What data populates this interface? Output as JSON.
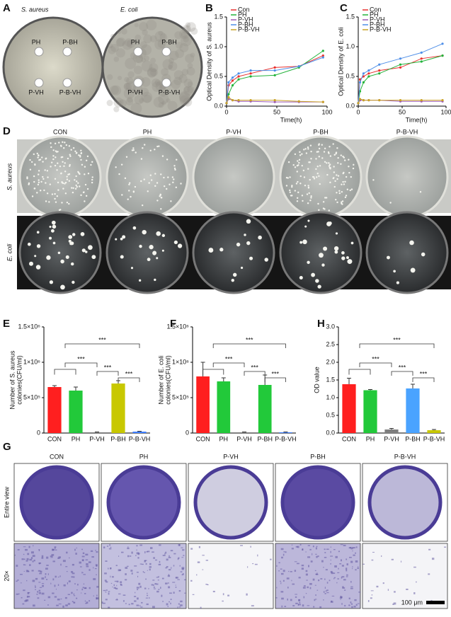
{
  "panel_letters": [
    "A",
    "B",
    "C",
    "D",
    "E",
    "F",
    "G",
    "H"
  ],
  "plates_a": {
    "titles": [
      "S. aureus",
      "E. coli"
    ],
    "wells": [
      "PH",
      "P-BH",
      "P-VH",
      "P-B-VH"
    ]
  },
  "colonies": {
    "columns": [
      "CON",
      "PH",
      "P-VH",
      "P-BH",
      "P-B-VH"
    ],
    "rows": [
      "S. aureus",
      "E. coli"
    ]
  },
  "biofilm": {
    "columns": [
      "CON",
      "PH",
      "P-VH",
      "P-BH",
      "P-B-VH"
    ],
    "rows": [
      "Entire view",
      "20×"
    ],
    "scale_bar": "100 μm"
  },
  "chart_data": [
    {
      "type": "line",
      "ylabel": "Optical Density of S. aureus",
      "xlabel": "Time(h)",
      "x": [
        0,
        2,
        6,
        12,
        24,
        48,
        72,
        96
      ],
      "xlim": [
        0,
        100
      ],
      "xticks": [
        0,
        50,
        100
      ],
      "ylim": [
        0,
        1.5
      ],
      "yticks": [
        {
          "value": 0,
          "label": "0.0"
        },
        0.5,
        {
          "value": 1,
          "label": "1.0"
        },
        1.5
      ],
      "series": [
        {
          "name": "Con",
          "color": "#e8312f",
          "values": [
            0.05,
            0.35,
            0.43,
            0.5,
            0.55,
            0.65,
            0.67,
            0.85
          ]
        },
        {
          "name": "PH",
          "color": "#23b33b",
          "values": [
            0.05,
            0.2,
            0.35,
            0.45,
            0.5,
            0.52,
            0.65,
            0.93
          ]
        },
        {
          "name": "P-VH",
          "color": "#9b59b6",
          "values": [
            0.05,
            0.12,
            0.1,
            0.08,
            0.08,
            0.07,
            0.07,
            0.07
          ]
        },
        {
          "name": "P-BH",
          "color": "#4f8fe8",
          "values": [
            0.05,
            0.4,
            0.48,
            0.55,
            0.6,
            0.6,
            0.67,
            0.82
          ]
        },
        {
          "name": "P-B-VH",
          "color": "#c9a227",
          "values": [
            0.05,
            0.15,
            0.1,
            0.1,
            0.1,
            0.1,
            0.08,
            0.07
          ]
        }
      ]
    },
    {
      "type": "line",
      "ylabel": "Optical Density of E. coli",
      "xlabel": "Time(h)",
      "x": [
        0,
        2,
        6,
        12,
        24,
        48,
        72,
        96
      ],
      "xlim": [
        0,
        100
      ],
      "xticks": [
        0,
        50,
        100
      ],
      "ylim": [
        0,
        1.5
      ],
      "yticks": [
        {
          "value": 0,
          "label": "0.0"
        },
        0.5,
        {
          "value": 1,
          "label": "1.0"
        },
        1.5
      ],
      "series": [
        {
          "name": "Con",
          "color": "#e8312f",
          "values": [
            0.05,
            0.45,
            0.5,
            0.55,
            0.6,
            0.65,
            0.8,
            0.85
          ]
        },
        {
          "name": "PH",
          "color": "#23b33b",
          "values": [
            0.05,
            0.25,
            0.4,
            0.5,
            0.55,
            0.7,
            0.75,
            0.85
          ]
        },
        {
          "name": "P-VH",
          "color": "#9b59b6",
          "values": [
            0.05,
            0.1,
            0.1,
            0.1,
            0.1,
            0.08,
            0.08,
            0.08
          ]
        },
        {
          "name": "P-BH",
          "color": "#4f8fe8",
          "values": [
            0.05,
            0.4,
            0.55,
            0.6,
            0.7,
            0.8,
            0.9,
            1.05
          ]
        },
        {
          "name": "P-B-VH",
          "color": "#c9a227",
          "values": [
            0.05,
            0.12,
            0.1,
            0.1,
            0.1,
            0.1,
            0.1,
            0.1
          ]
        }
      ]
    },
    {
      "type": "bar",
      "ylabel": [
        "Number of S. aureus",
        "colonies(CFU/ml)"
      ],
      "categories": [
        "CON",
        "PH",
        "P-VH",
        "P-BH",
        "P-B-VH"
      ],
      "values": [
        650000,
        600000,
        10000,
        700000,
        20000
      ],
      "errors": [
        20000,
        50000,
        5000,
        40000,
        5000
      ],
      "colors": [
        "#ff1f1f",
        "#22c93a",
        "#7f7f7f",
        "#c8c800",
        "#3f7fff"
      ],
      "ylim": [
        0,
        1500000
      ],
      "yticks": [
        0,
        {
          "value": 500000,
          "label": "5×10⁵"
        },
        {
          "value": 1000000,
          "label": "1×10⁶"
        },
        {
          "value": 1500000,
          "label": "1.5×10⁶"
        }
      ],
      "annotations": [
        "***",
        "***",
        "***",
        "***"
      ]
    },
    {
      "type": "bar",
      "ylabel": [
        "Number of E. coli",
        "colonies(CFU/ml)"
      ],
      "categories": [
        "CON",
        "PH",
        "P-VH",
        "P-BH",
        "P-B-VH"
      ],
      "values": [
        800000,
        730000,
        10000,
        680000,
        10000
      ],
      "errors": [
        200000,
        50000,
        5000,
        140000,
        5000
      ],
      "colors": [
        "#ff1f1f",
        "#22c93a",
        "#7f7f7f",
        "#22c93a",
        "#3f7fff"
      ],
      "ylim": [
        0,
        1500000
      ],
      "yticks": [
        0,
        {
          "value": 500000,
          "label": "5×10⁵"
        },
        {
          "value": 1000000,
          "label": "1×10⁶"
        },
        {
          "value": 1500000,
          "label": "1.5×10⁶"
        }
      ],
      "annotations": [
        "***",
        "***",
        "***",
        "***"
      ]
    },
    {
      "type": "bar",
      "ylabel": [
        "OD value"
      ],
      "categories": [
        "CON",
        "PH",
        "P-VH",
        "P-BH",
        "P-B-VH"
      ],
      "values": [
        1.38,
        1.21,
        0.1,
        1.26,
        0.08
      ],
      "errors": [
        0.17,
        0.02,
        0.03,
        0.12,
        0.02
      ],
      "colors": [
        "#ff1f1f",
        "#22c93a",
        "#7f7f7f",
        "#4aa3ff",
        "#c8c800"
      ],
      "ylim": [
        0,
        3
      ],
      "yticks": [
        {
          "value": 0,
          "label": "0.0"
        },
        0.5,
        {
          "value": 1,
          "label": "1.0"
        },
        1.5,
        {
          "value": 2,
          "label": "2.0"
        },
        2.5,
        {
          "value": 3,
          "label": "3.0"
        }
      ],
      "annotations": [
        "***",
        "***",
        "***",
        "***"
      ]
    }
  ]
}
